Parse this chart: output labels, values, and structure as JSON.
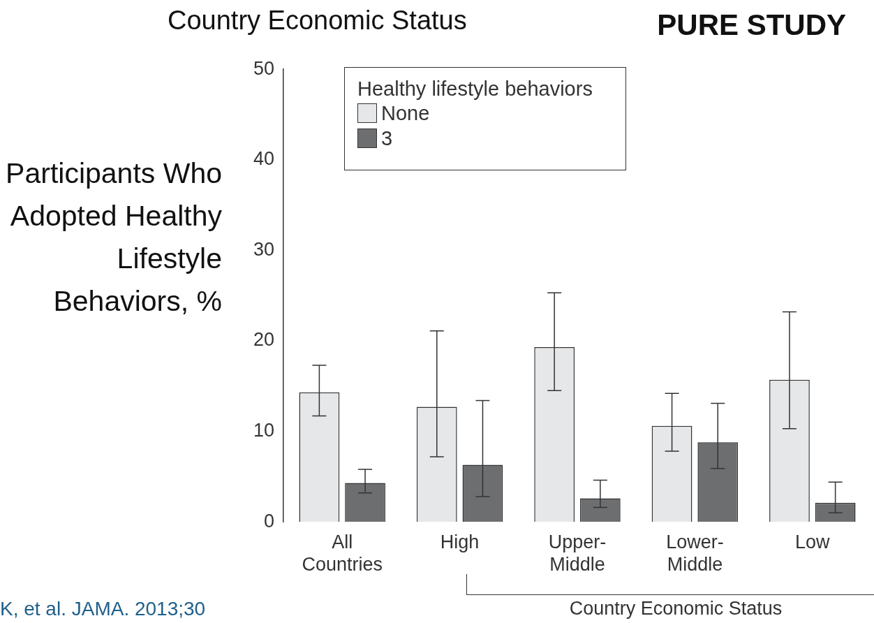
{
  "chart_data": {
    "type": "bar",
    "title": "Country Economic Status",
    "subtitle": "PURE STUDY",
    "ylabel": "Participants Who Adopted Healthy Lifestyle Behaviors, %",
    "xlabel": "Country Economic Status",
    "legend_title": "Healthy lifestyle behaviors",
    "categories": [
      "All Countries",
      "High",
      "Upper-Middle",
      "Lower-Middle",
      "Low"
    ],
    "series": [
      {
        "name": "None",
        "color": "#e6e7e9",
        "values": [
          14.3,
          12.7,
          19.3,
          10.6,
          15.7
        ],
        "errors": [
          [
            11.7,
            17.3
          ],
          [
            7.2,
            21.1
          ],
          [
            14.5,
            25.3
          ],
          [
            7.8,
            14.2
          ],
          [
            10.3,
            23.2
          ]
        ]
      },
      {
        "name": "3",
        "color": "#6d6e70",
        "values": [
          4.3,
          6.3,
          2.6,
          8.8,
          2.1
        ],
        "errors": [
          [
            3.2,
            5.8
          ],
          [
            2.8,
            13.4
          ],
          [
            1.6,
            4.6
          ],
          [
            5.9,
            13.1
          ],
          [
            1.0,
            4.4
          ]
        ]
      }
    ],
    "ylim": [
      0,
      50
    ],
    "yticks": [
      0,
      10,
      20,
      30,
      40,
      50
    ],
    "grid": false,
    "legend": "top left",
    "annotations": [
      "K, et al. JAMA. 2013;30"
    ]
  }
}
